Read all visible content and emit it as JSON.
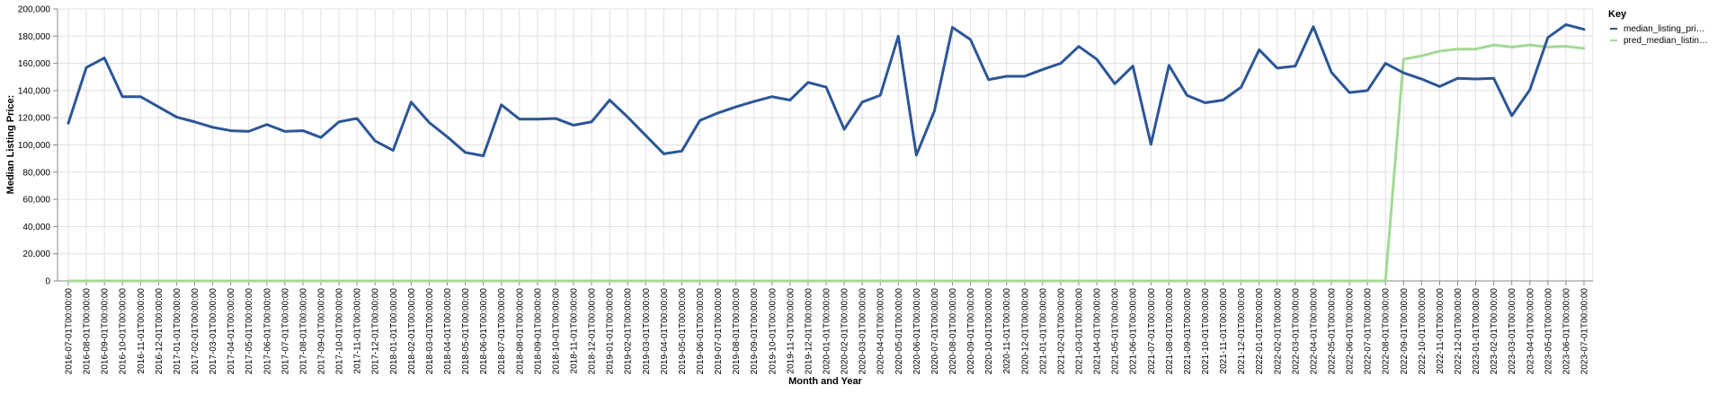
{
  "chart_data": {
    "type": "line",
    "xlabel": "Month and Year",
    "ylabel": "Median Listing Price:",
    "ylim": [
      0,
      200000
    ],
    "yticks": [
      "0",
      "20,000",
      "40,000",
      "60,000",
      "80,000",
      "100,000",
      "120,000",
      "140,000",
      "160,000",
      "180,000",
      "200,000"
    ],
    "grid": true,
    "legend": {
      "title": "Key",
      "placement": "right"
    },
    "x": [
      "2016-07-01T00:00:00",
      "2016-08-01T00:00:00",
      "2016-09-01T00:00:00",
      "2016-10-01T00:00:00",
      "2016-11-01T00:00:00",
      "2016-12-01T00:00:00",
      "2017-01-01T00:00:00",
      "2017-02-01T00:00:00",
      "2017-03-01T00:00:00",
      "2017-04-01T00:00:00",
      "2017-05-01T00:00:00",
      "2017-06-01T00:00:00",
      "2017-07-01T00:00:00",
      "2017-08-01T00:00:00",
      "2017-09-01T00:00:00",
      "2017-10-01T00:00:00",
      "2017-11-01T00:00:00",
      "2017-12-01T00:00:00",
      "2018-01-01T00:00:00",
      "2018-02-01T00:00:00",
      "2018-03-01T00:00:00",
      "2018-04-01T00:00:00",
      "2018-05-01T00:00:00",
      "2018-06-01T00:00:00",
      "2018-07-01T00:00:00",
      "2018-08-01T00:00:00",
      "2018-09-01T00:00:00",
      "2018-10-01T00:00:00",
      "2018-11-01T00:00:00",
      "2018-12-01T00:00:00",
      "2019-01-01T00:00:00",
      "2019-02-01T00:00:00",
      "2019-03-01T00:00:00",
      "2019-04-01T00:00:00",
      "2019-05-01T00:00:00",
      "2019-06-01T00:00:00",
      "2019-07-01T00:00:00",
      "2019-08-01T00:00:00",
      "2019-09-01T00:00:00",
      "2019-10-01T00:00:00",
      "2019-11-01T00:00:00",
      "2019-12-01T00:00:00",
      "2020-01-01T00:00:00",
      "2020-02-01T00:00:00",
      "2020-03-01T00:00:00",
      "2020-04-01T00:00:00",
      "2020-05-01T00:00:00",
      "2020-06-01T00:00:00",
      "2020-07-01T00:00:00",
      "2020-08-01T00:00:00",
      "2020-09-01T00:00:00",
      "2020-10-01T00:00:00",
      "2020-11-01T00:00:00",
      "2020-12-01T00:00:00",
      "2021-01-01T00:00:00",
      "2021-02-01T00:00:00",
      "2021-03-01T00:00:00",
      "2021-04-01T00:00:00",
      "2021-05-01T00:00:00",
      "2021-06-01T00:00:00",
      "2021-07-01T00:00:00",
      "2021-08-01T00:00:00",
      "2021-09-01T00:00:00",
      "2021-10-01T00:00:00",
      "2021-11-01T00:00:00",
      "2021-12-01T00:00:00",
      "2022-01-01T00:00:00",
      "2022-02-01T00:00:00",
      "2022-03-01T00:00:00",
      "2022-04-01T00:00:00",
      "2022-05-01T00:00:00",
      "2022-06-01T00:00:00",
      "2022-07-01T00:00:00",
      "2022-08-01T00:00:00",
      "2022-09-01T00:00:00",
      "2022-10-01T00:00:00",
      "2022-11-01T00:00:00",
      "2022-12-01T00:00:00",
      "2023-01-01T00:00:00",
      "2023-02-01T00:00:00",
      "2023-03-01T00:00:00",
      "2023-04-01T00:00:00",
      "2023-05-01T00:00:00",
      "2023-06-01T00:00:00",
      "2023-07-01T00:00:00"
    ],
    "series": [
      {
        "name": "median_listing_pri…",
        "color": "#2c5697",
        "values": [
          116000,
          157000,
          164000,
          135500,
          135500,
          128000,
          120500,
          117000,
          113000,
          110500,
          110000,
          115000,
          110000,
          110500,
          105500,
          117000,
          119500,
          103000,
          96000,
          131500,
          116500,
          106000,
          94500,
          92000,
          129500,
          119000,
          119000,
          119500,
          114500,
          117000,
          133000,
          120500,
          107000,
          93500,
          95500,
          118000,
          123500,
          128000,
          132000,
          135500,
          133000,
          146000,
          142500,
          111500,
          131500,
          136500,
          180000,
          92500,
          125000,
          186500,
          177500,
          148000,
          150500,
          150500,
          155500,
          160000,
          172500,
          163000,
          145000,
          158000,
          100500,
          158500,
          136500,
          131000,
          133000,
          142500,
          170000,
          156500,
          158000,
          187000,
          153500,
          138500,
          140000,
          160000,
          153000,
          148500,
          143000,
          149000,
          148500,
          149000,
          121500,
          140500,
          179000,
          188500,
          185000
        ]
      },
      {
        "name": "pred_median_listin…",
        "color": "#a2d995",
        "values": [
          0,
          0,
          0,
          0,
          0,
          0,
          0,
          0,
          0,
          0,
          0,
          0,
          0,
          0,
          0,
          0,
          0,
          0,
          0,
          0,
          0,
          0,
          0,
          0,
          0,
          0,
          0,
          0,
          0,
          0,
          0,
          0,
          0,
          0,
          0,
          0,
          0,
          0,
          0,
          0,
          0,
          0,
          0,
          0,
          0,
          0,
          0,
          0,
          0,
          0,
          0,
          0,
          0,
          0,
          0,
          0,
          0,
          0,
          0,
          0,
          0,
          0,
          0,
          0,
          0,
          0,
          0,
          0,
          0,
          0,
          0,
          0,
          0,
          0,
          163000,
          165500,
          169000,
          170500,
          170500,
          173500,
          172000,
          173500,
          172000,
          172500,
          171000
        ]
      }
    ]
  }
}
